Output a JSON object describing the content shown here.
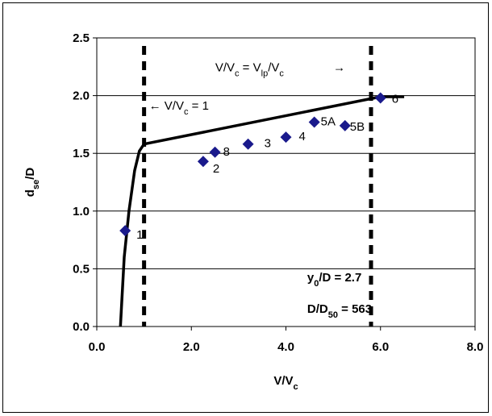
{
  "chart_data": {
    "type": "scatter",
    "x_axis": {
      "label_main": "V/V",
      "label_sub": "c",
      "lim": [
        0,
        8
      ],
      "ticks": [
        "0.0",
        "2.0",
        "4.0",
        "6.0",
        "8.0"
      ]
    },
    "y_axis": {
      "label_main": "d",
      "label_sub": "se",
      "label_tail": "/D",
      "lim": [
        0,
        2.5
      ],
      "ticks": [
        "0.0",
        "0.5",
        "1.0",
        "1.5",
        "2.0",
        "2.5"
      ]
    },
    "grid": "horizontal",
    "points": [
      {
        "x": 0.6,
        "y": 0.83,
        "label": "1"
      },
      {
        "x": 2.25,
        "y": 1.43,
        "label": "2"
      },
      {
        "x": 2.5,
        "y": 1.51,
        "label": "8"
      },
      {
        "x": 3.2,
        "y": 1.58,
        "label": "3"
      },
      {
        "x": 4.0,
        "y": 1.64,
        "label": "4"
      },
      {
        "x": 4.6,
        "y": 1.77,
        "label": "5A"
      },
      {
        "x": 5.25,
        "y": 1.74,
        "label": "5B"
      },
      {
        "x": 6.0,
        "y": 1.98,
        "label": "6"
      }
    ],
    "curve": {
      "points": [
        [
          0.5,
          0
        ],
        [
          0.58,
          0.6
        ],
        [
          0.68,
          1.0
        ],
        [
          0.8,
          1.35
        ],
        [
          0.9,
          1.52
        ],
        [
          1.0,
          1.58
        ],
        [
          6.0,
          1.99
        ],
        [
          6.5,
          1.99
        ]
      ],
      "color": "#000000"
    },
    "marker_color": "#1a1a8c",
    "vertical_lines": [
      {
        "x": 1.0,
        "label": "← V/V",
        "label_sub": "c",
        "label_tail": " = 1"
      },
      {
        "x": 5.8,
        "label": "V/V",
        "label_sub": "c",
        "label_mid": " = V",
        "label_sub2": "lp",
        "label_mid2": "/V",
        "label_sub3": "c",
        "arrow": "→"
      }
    ],
    "annotations": [
      {
        "main": "y",
        "sub": "0",
        "tail": "/D = 2.7"
      },
      {
        "main": "D/D",
        "sub": "50",
        "tail": " = 563"
      }
    ]
  }
}
